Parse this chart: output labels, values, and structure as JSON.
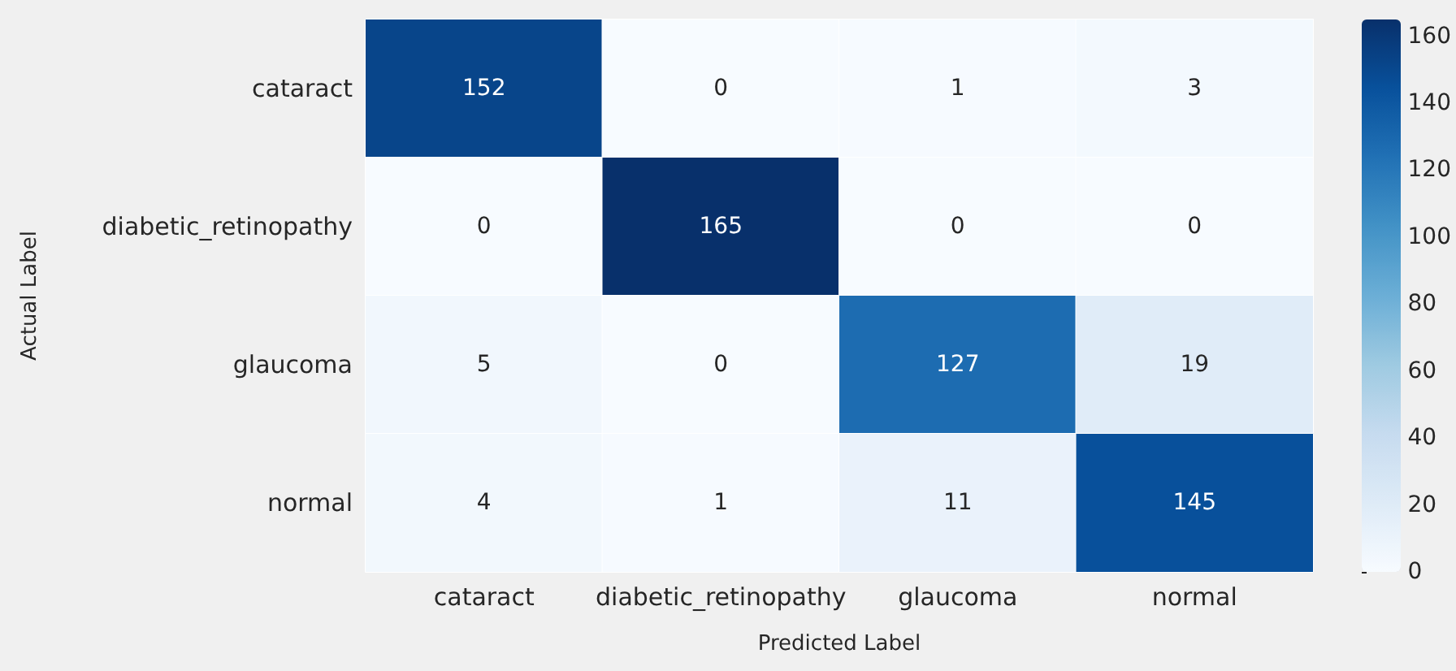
{
  "chart_data": {
    "type": "heatmap",
    "xlabel": "Predicted Label",
    "ylabel": "Actual Label",
    "categories": [
      "cataract",
      "diabetic_retinopathy",
      "glaucoma",
      "normal"
    ],
    "y_categories": [
      "cataract",
      "diabetic_retinopathy",
      "glaucoma",
      "normal"
    ],
    "cells": [
      [
        152,
        0,
        1,
        3
      ],
      [
        0,
        165,
        0,
        0
      ],
      [
        5,
        0,
        127,
        19
      ],
      [
        4,
        1,
        11,
        145
      ]
    ],
    "clim": [
      0,
      165
    ],
    "cticks": [
      0,
      20,
      40,
      60,
      80,
      100,
      120,
      140,
      160
    ],
    "data_labels": true
  }
}
